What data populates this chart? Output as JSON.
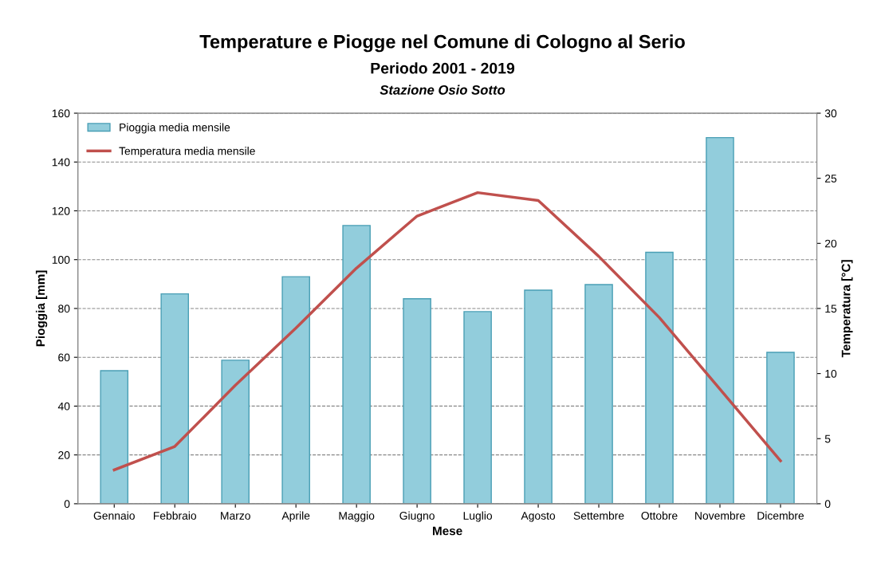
{
  "chart_data": {
    "type": "bar",
    "title": "Temperature e Piogge nel Comune di Cologno al Serio",
    "subtitle": "Periodo 2001 - 2019\nStazione Osio Sotto",
    "xlabel": "Mese",
    "ylabel": "Pioggia [mm]",
    "y2label": "Temperatura [°C]",
    "categories": [
      "Gennaio",
      "Febbraio",
      "Marzo",
      "Aprile",
      "Maggio",
      "Giugno",
      "Luglio",
      "Agosto",
      "Settembre",
      "Ottobre",
      "Novembre",
      "Dicembre"
    ],
    "series": [
      {
        "name": "Pioggia media mensile",
        "color": "#92cddc",
        "values": [
          54.5,
          86,
          58.8,
          93,
          114,
          84,
          78.7,
          87.5,
          89.8,
          103,
          150,
          62
        ]
      },
      {
        "name": "Temperatura media mensile",
        "type": "line",
        "axis": "y2",
        "color": "#c0504d",
        "values": [
          2.6,
          4.4,
          9.1,
          13.5,
          18.1,
          22.1,
          23.9,
          23.3,
          19.0,
          14.3,
          8.8,
          3.3
        ]
      }
    ],
    "ylim": [
      0,
      160
    ],
    "yticks": [
      0,
      20,
      40,
      60,
      80,
      100,
      120,
      140,
      160
    ],
    "y2lim": [
      0,
      30
    ],
    "y2ticks": [
      0,
      5,
      10,
      15,
      20,
      25,
      30
    ],
    "grid": "y",
    "legend": "top left",
    "line_style": "solid",
    "marker": "none"
  }
}
